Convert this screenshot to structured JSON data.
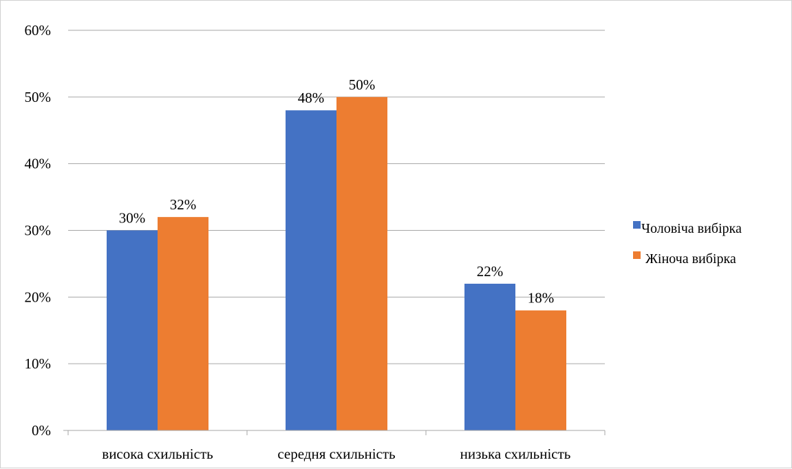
{
  "chart_data": {
    "type": "bar",
    "categories": [
      "висока схильність",
      "середня схильність",
      "низька схильність"
    ],
    "series": [
      {
        "name": "Чоловіча вибірка",
        "values": [
          30,
          48,
          22
        ],
        "labels": [
          "30%",
          "48%",
          "22%"
        ],
        "color": "#4472C4"
      },
      {
        "name": "Жіноча вибірка",
        "values": [
          32,
          50,
          18
        ],
        "labels": [
          "32%",
          "50%",
          "18%"
        ],
        "color": "#ED7D31"
      }
    ],
    "ylim": [
      0,
      60
    ],
    "yticks": [
      0,
      10,
      20,
      30,
      40,
      50,
      60
    ],
    "ytick_labels": [
      "0%",
      "10%",
      "20%",
      "30%",
      "40%",
      "50%",
      "60%"
    ],
    "grid": true,
    "gridline_color": "#a6a6a6",
    "legend_position": "right",
    "title": "",
    "xlabel": "",
    "ylabel": ""
  }
}
